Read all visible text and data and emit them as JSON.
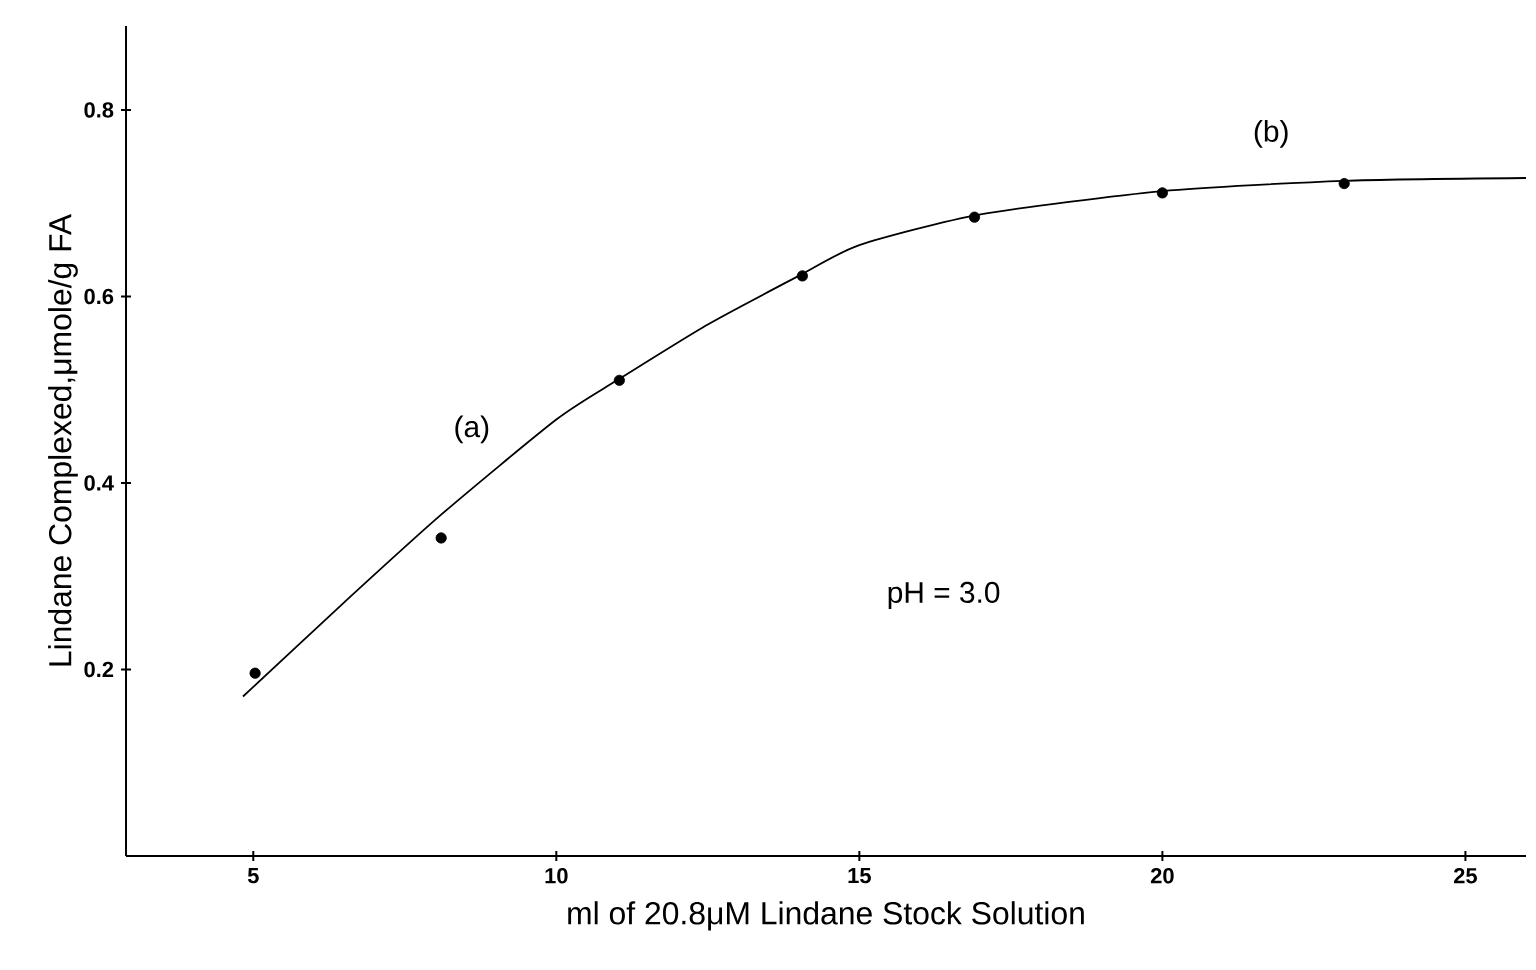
{
  "chart_data": {
    "type": "scatter",
    "xlabel": "ml of 20.8μM Lindane Stock Solution",
    "ylabel": "Lindane Complexed,μmole/g FA",
    "xlim": [
      2.9,
      26.0
    ],
    "ylim": [
      0,
      0.89
    ],
    "xticks": [
      5,
      10,
      15,
      20,
      25
    ],
    "yticks": [
      0.2,
      0.4,
      0.6,
      0.8
    ],
    "grid": false,
    "marker": "circle",
    "series": [
      {
        "color": "#000000",
        "x": [
          5.03,
          8.1,
          11.04,
          14.06,
          16.9,
          20.0,
          23.0
        ],
        "values": [
          0.196,
          0.341,
          0.51,
          0.622,
          0.685,
          0.711,
          0.721
        ]
      },
      {
        "type": "line",
        "color": "#000000",
        "marker": "none",
        "line_style": "solid",
        "x": [
          4.83,
          6.5,
          8.1,
          10,
          11,
          12.5,
          14,
          15,
          17,
          20,
          23,
          26
        ],
        "values": [
          0.171,
          0.272,
          0.366,
          0.468,
          0.51,
          0.57,
          0.622,
          0.655,
          0.688,
          0.713,
          0.724,
          0.727
        ]
      }
    ],
    "annotations": [
      "(a)",
      "(b)",
      "pH = 3.0"
    ]
  }
}
